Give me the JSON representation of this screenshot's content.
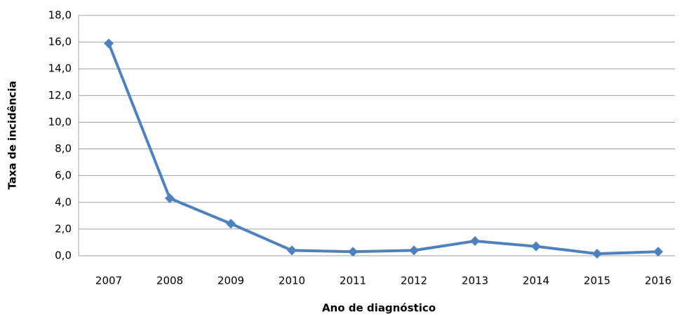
{
  "chart_data": {
    "type": "line",
    "x_label": "Ano de diagnóstico",
    "y_label": "Taxa de incidência",
    "categories": [
      "2007",
      "2008",
      "2009",
      "2010",
      "2011",
      "2012",
      "2013",
      "2014",
      "2015",
      "2016"
    ],
    "series": [
      {
        "color": "#4f81bd",
        "values": [
          15.9,
          4.3,
          2.4,
          0.4,
          0.3,
          0.4,
          1.1,
          0.7,
          0.15,
          0.3
        ]
      }
    ],
    "ylim": [
      0,
      18
    ],
    "yticks": [
      {
        "value": 0,
        "label": "0,0"
      },
      {
        "value": 2,
        "label": "2,0"
      },
      {
        "value": 4,
        "label": "4,0"
      },
      {
        "value": 6,
        "label": "6,0"
      },
      {
        "value": 8,
        "label": "8,0"
      },
      {
        "value": 10,
        "label": "10,0"
      },
      {
        "value": 12,
        "label": "12,0"
      },
      {
        "value": 14,
        "label": "14,0"
      },
      {
        "value": 16,
        "label": "16,0"
      },
      {
        "value": 18,
        "label": "18,0"
      }
    ],
    "grid": true
  }
}
